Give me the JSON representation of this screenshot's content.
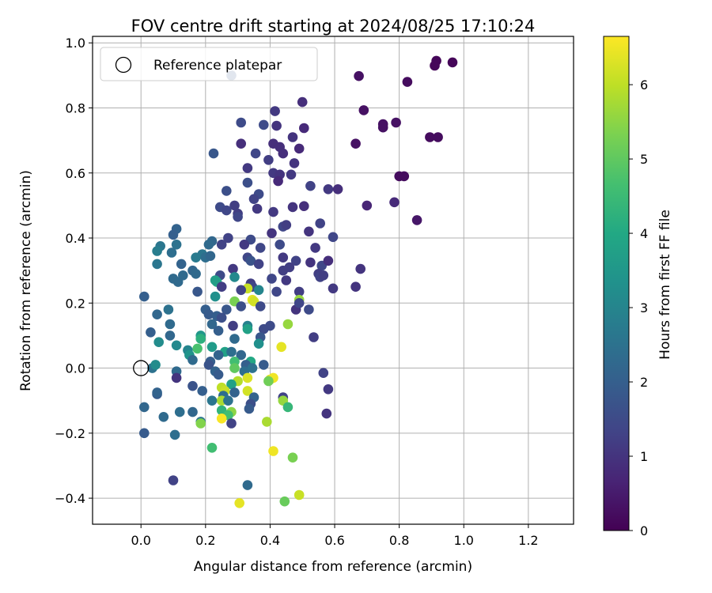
{
  "chart_data": {
    "type": "scatter",
    "title": "FOV centre drift starting at 2024/08/25 17:10:24",
    "xlabel": "Angular distance from reference (arcmin)",
    "ylabel": "Rotation from reference (arcmin)",
    "xlim": [
      -0.15,
      1.34
    ],
    "ylim": [
      -0.48,
      1.02
    ],
    "xticks": [
      0.0,
      0.2,
      0.4,
      0.6,
      0.8,
      1.0,
      1.2
    ],
    "xtick_labels": [
      "0.0",
      "0.2",
      "0.4",
      "0.6",
      "0.8",
      "1.0",
      "1.2"
    ],
    "yticks": [
      -0.4,
      -0.2,
      0.0,
      0.2,
      0.4,
      0.6,
      0.8,
      1.0
    ],
    "ytick_labels": [
      "−0.4",
      "−0.2",
      "0.0",
      "0.2",
      "0.4",
      "0.6",
      "0.8",
      "1.0"
    ],
    "grid": true,
    "legend": {
      "placement": "upper-left",
      "entries": [
        "Reference platepar"
      ]
    },
    "reference_point": {
      "x": 0.0,
      "y": 0.0
    },
    "colorbar": {
      "label": "Hours from first FF file",
      "range": [
        0,
        6.65
      ],
      "ticks": [
        0,
        1,
        2,
        3,
        4,
        5,
        6
      ],
      "tick_labels": [
        "0",
        "1",
        "2",
        "3",
        "4",
        "5",
        "6"
      ],
      "colormap": "viridis"
    },
    "points": [
      [
        0.915,
        0.945,
        0.1
      ],
      [
        0.965,
        0.94,
        0.1
      ],
      [
        0.91,
        0.93,
        0.1
      ],
      [
        0.28,
        0.9,
        1.8
      ],
      [
        0.675,
        0.898,
        0.3
      ],
      [
        0.825,
        0.88,
        0.2
      ],
      [
        0.5,
        0.818,
        0.9
      ],
      [
        0.69,
        0.793,
        0.3
      ],
      [
        0.415,
        0.79,
        1.1
      ],
      [
        0.31,
        0.755,
        1.5
      ],
      [
        0.38,
        0.748,
        1.5
      ],
      [
        0.42,
        0.745,
        1.0
      ],
      [
        0.505,
        0.738,
        0.8
      ],
      [
        0.75,
        0.75,
        0.3
      ],
      [
        0.79,
        0.755,
        0.3
      ],
      [
        0.75,
        0.74,
        0.3
      ],
      [
        0.895,
        0.71,
        0.2
      ],
      [
        0.92,
        0.71,
        0.2
      ],
      [
        0.47,
        0.71,
        1.0
      ],
      [
        0.31,
        0.69,
        0.9
      ],
      [
        0.41,
        0.69,
        0.9
      ],
      [
        0.43,
        0.68,
        0.9
      ],
      [
        0.665,
        0.69,
        0.3
      ],
      [
        0.49,
        0.675,
        0.8
      ],
      [
        0.44,
        0.66,
        0.9
      ],
      [
        0.355,
        0.66,
        1.4
      ],
      [
        0.225,
        0.66,
        1.8
      ],
      [
        0.395,
        0.64,
        1.2
      ],
      [
        0.475,
        0.63,
        1.0
      ],
      [
        0.33,
        0.615,
        1.1
      ],
      [
        0.41,
        0.6,
        1.1
      ],
      [
        0.43,
        0.595,
        1.0
      ],
      [
        0.465,
        0.595,
        1.1
      ],
      [
        0.8,
        0.59,
        0.2
      ],
      [
        0.815,
        0.59,
        0.2
      ],
      [
        0.425,
        0.575,
        0.8
      ],
      [
        0.33,
        0.57,
        1.6
      ],
      [
        0.525,
        0.56,
        1.3
      ],
      [
        0.58,
        0.55,
        1.1
      ],
      [
        0.61,
        0.55,
        0.9
      ],
      [
        0.265,
        0.545,
        1.6
      ],
      [
        0.365,
        0.535,
        1.5
      ],
      [
        0.35,
        0.52,
        1.3
      ],
      [
        0.29,
        0.5,
        1.2
      ],
      [
        0.47,
        0.495,
        1.0
      ],
      [
        0.505,
        0.498,
        0.9
      ],
      [
        0.245,
        0.495,
        1.5
      ],
      [
        0.7,
        0.5,
        0.7
      ],
      [
        0.785,
        0.51,
        0.8
      ],
      [
        0.265,
        0.485,
        1.4
      ],
      [
        0.36,
        0.49,
        1.1
      ],
      [
        0.3,
        0.475,
        1.2
      ],
      [
        0.41,
        0.48,
        1.1
      ],
      [
        0.3,
        0.465,
        1.4
      ],
      [
        0.855,
        0.455,
        0.4
      ],
      [
        0.555,
        0.445,
        1.3
      ],
      [
        0.44,
        0.435,
        1.4
      ],
      [
        0.45,
        0.44,
        1.2
      ],
      [
        0.11,
        0.428,
        2.1
      ],
      [
        0.405,
        0.415,
        1.0
      ],
      [
        0.52,
        0.42,
        1.0
      ],
      [
        0.1,
        0.41,
        2.0
      ],
      [
        0.595,
        0.403,
        1.4
      ],
      [
        0.22,
        0.39,
        2.2
      ],
      [
        0.34,
        0.395,
        1.5
      ],
      [
        0.27,
        0.4,
        1.3
      ],
      [
        0.11,
        0.38,
        2.5
      ],
      [
        0.25,
        0.38,
        1.3
      ],
      [
        0.21,
        0.38,
        2.3
      ],
      [
        0.32,
        0.38,
        1.1
      ],
      [
        0.37,
        0.37,
        1.4
      ],
      [
        0.43,
        0.38,
        1.5
      ],
      [
        0.54,
        0.37,
        1.1
      ],
      [
        0.06,
        0.375,
        2.6
      ],
      [
        0.05,
        0.36,
        2.8
      ],
      [
        0.095,
        0.355,
        2.4
      ],
      [
        0.19,
        0.35,
        2.6
      ],
      [
        0.17,
        0.34,
        2.7
      ],
      [
        0.2,
        0.34,
        2.4
      ],
      [
        0.215,
        0.345,
        2.2
      ],
      [
        0.33,
        0.34,
        1.4
      ],
      [
        0.34,
        0.33,
        1.7
      ],
      [
        0.44,
        0.34,
        1.1
      ],
      [
        0.125,
        0.32,
        2.1
      ],
      [
        0.48,
        0.33,
        1.3
      ],
      [
        0.525,
        0.325,
        1.0
      ],
      [
        0.56,
        0.315,
        1.4
      ],
      [
        0.05,
        0.32,
        2.6
      ],
      [
        0.365,
        0.32,
        1.3
      ],
      [
        0.68,
        0.305,
        1.0
      ],
      [
        0.285,
        0.305,
        1.1
      ],
      [
        0.46,
        0.31,
        1.2
      ],
      [
        0.44,
        0.3,
        1.2
      ],
      [
        0.16,
        0.3,
        2.2
      ],
      [
        0.17,
        0.29,
        2.3
      ],
      [
        0.245,
        0.285,
        1.5
      ],
      [
        0.13,
        0.285,
        2.3
      ],
      [
        0.55,
        0.29,
        1.2
      ],
      [
        0.555,
        0.28,
        1.3
      ],
      [
        0.565,
        0.285,
        1.2
      ],
      [
        0.58,
        0.33,
        0.9
      ],
      [
        0.1,
        0.275,
        2.3
      ],
      [
        0.29,
        0.28,
        3.1
      ],
      [
        0.235,
        0.265,
        4.0
      ],
      [
        0.23,
        0.27,
        3.7
      ],
      [
        0.115,
        0.265,
        2.3
      ],
      [
        0.34,
        0.26,
        1.2
      ],
      [
        0.45,
        0.27,
        1.1
      ],
      [
        0.405,
        0.275,
        1.4
      ],
      [
        0.345,
        0.25,
        1.4
      ],
      [
        0.595,
        0.245,
        1.1
      ],
      [
        0.665,
        0.25,
        1.0
      ],
      [
        0.25,
        0.25,
        1.2
      ],
      [
        0.365,
        0.24,
        3.0
      ],
      [
        0.33,
        0.245,
        6.1
      ],
      [
        0.31,
        0.24,
        1.3
      ],
      [
        0.42,
        0.235,
        1.4
      ],
      [
        0.49,
        0.235,
        1.2
      ],
      [
        0.175,
        0.235,
        1.8
      ],
      [
        0.01,
        0.22,
        2.0
      ],
      [
        0.23,
        0.22,
        3.3
      ],
      [
        0.345,
        0.21,
        6.4
      ],
      [
        0.35,
        0.205,
        6.2
      ],
      [
        0.29,
        0.205,
        5.3
      ],
      [
        0.49,
        0.21,
        5.6
      ],
      [
        0.085,
        0.18,
        2.5
      ],
      [
        0.2,
        0.18,
        2.0
      ],
      [
        0.52,
        0.18,
        1.5
      ],
      [
        0.48,
        0.18,
        1.0
      ],
      [
        0.37,
        0.19,
        1.5
      ],
      [
        0.31,
        0.19,
        1.6
      ],
      [
        0.49,
        0.2,
        1.4
      ],
      [
        0.265,
        0.18,
        1.8
      ],
      [
        0.21,
        0.165,
        1.9
      ],
      [
        0.05,
        0.165,
        2.2
      ],
      [
        0.235,
        0.16,
        2.0
      ],
      [
        0.25,
        0.155,
        1.6
      ],
      [
        0.22,
        0.135,
        2.2
      ],
      [
        0.09,
        0.135,
        2.3
      ],
      [
        0.285,
        0.13,
        1.2
      ],
      [
        0.33,
        0.13,
        2.9
      ],
      [
        0.4,
        0.13,
        1.5
      ],
      [
        0.455,
        0.135,
        5.6
      ],
      [
        0.38,
        0.12,
        1.5
      ],
      [
        0.33,
        0.12,
        3.8
      ],
      [
        0.24,
        0.115,
        2.0
      ],
      [
        0.03,
        0.11,
        2.0
      ],
      [
        0.37,
        0.095,
        1.8
      ],
      [
        0.535,
        0.095,
        1.2
      ],
      [
        0.09,
        0.1,
        2.2
      ],
      [
        0.185,
        0.1,
        3.5
      ],
      [
        0.185,
        0.09,
        4.2
      ],
      [
        0.29,
        0.09,
        2.3
      ],
      [
        0.055,
        0.08,
        3.2
      ],
      [
        0.365,
        0.075,
        3.3
      ],
      [
        0.435,
        0.065,
        6.4
      ],
      [
        0.11,
        0.07,
        3.1
      ],
      [
        0.22,
        0.065,
        3.6
      ],
      [
        0.145,
        0.055,
        3.0
      ],
      [
        0.175,
        0.06,
        4.7
      ],
      [
        0.15,
        0.04,
        3.4
      ],
      [
        0.26,
        0.05,
        3.8
      ],
      [
        0.24,
        0.04,
        2.1
      ],
      [
        0.28,
        0.05,
        2.4
      ],
      [
        0.31,
        0.04,
        2.2
      ],
      [
        0.16,
        0.025,
        2.3
      ],
      [
        0.215,
        0.02,
        2.0
      ],
      [
        0.29,
        0.02,
        4.6
      ],
      [
        0.34,
        0.02,
        4.0
      ],
      [
        0.325,
        0.01,
        2.0
      ],
      [
        0.38,
        0.01,
        1.9
      ],
      [
        0.29,
        0.0,
        5.0
      ],
      [
        0.32,
        -0.01,
        2.4
      ],
      [
        0.21,
        0.01,
        1.7
      ],
      [
        0.035,
        0.0,
        2.5
      ],
      [
        0.045,
        0.01,
        3.2
      ],
      [
        0.345,
        0.0,
        2.5
      ],
      [
        0.565,
        -0.015,
        1.3
      ],
      [
        0.11,
        -0.01,
        2.3
      ],
      [
        0.23,
        -0.01,
        2.1
      ],
      [
        0.24,
        -0.02,
        1.9
      ],
      [
        0.33,
        -0.03,
        6.3
      ],
      [
        0.4,
        -0.035,
        6.3
      ],
      [
        0.41,
        -0.03,
        6.5
      ],
      [
        0.11,
        -0.03,
        1.0
      ],
      [
        0.3,
        -0.04,
        5.9
      ],
      [
        0.395,
        -0.04,
        5.2
      ],
      [
        0.28,
        -0.05,
        3.8
      ],
      [
        0.16,
        -0.055,
        1.7
      ],
      [
        0.25,
        -0.06,
        6.0
      ],
      [
        0.58,
        -0.065,
        1.1
      ],
      [
        0.19,
        -0.07,
        2.0
      ],
      [
        0.33,
        -0.07,
        6.2
      ],
      [
        0.26,
        -0.07,
        6.1
      ],
      [
        0.29,
        -0.075,
        2.1
      ],
      [
        0.05,
        -0.08,
        1.9
      ],
      [
        0.05,
        -0.075,
        2.1
      ],
      [
        0.255,
        -0.085,
        2.4
      ],
      [
        0.35,
        -0.09,
        2.1
      ],
      [
        0.44,
        -0.09,
        1.3
      ],
      [
        0.44,
        -0.1,
        5.6
      ],
      [
        0.25,
        -0.1,
        5.8
      ],
      [
        0.27,
        -0.1,
        2.5
      ],
      [
        0.22,
        -0.1,
        2.6
      ],
      [
        0.34,
        -0.11,
        1.6
      ],
      [
        0.455,
        -0.12,
        4.4
      ],
      [
        0.01,
        -0.12,
        2.2
      ],
      [
        0.335,
        -0.125,
        1.9
      ],
      [
        0.25,
        -0.13,
        4.3
      ],
      [
        0.28,
        -0.135,
        5.5
      ],
      [
        0.12,
        -0.135,
        2.4
      ],
      [
        0.16,
        -0.135,
        2.2
      ],
      [
        0.575,
        -0.14,
        1.0
      ],
      [
        0.27,
        -0.145,
        4.6
      ],
      [
        0.07,
        -0.15,
        2.3
      ],
      [
        0.25,
        -0.155,
        6.6
      ],
      [
        0.185,
        -0.165,
        2.6
      ],
      [
        0.28,
        -0.17,
        1.3
      ],
      [
        0.185,
        -0.17,
        5.4
      ],
      [
        0.39,
        -0.165,
        5.8
      ],
      [
        0.01,
        -0.2,
        1.9
      ],
      [
        0.105,
        -0.205,
        2.4
      ],
      [
        0.22,
        -0.245,
        4.6
      ],
      [
        0.41,
        -0.255,
        6.5
      ],
      [
        0.47,
        -0.275,
        5.3
      ],
      [
        0.1,
        -0.345,
        1.3
      ],
      [
        0.33,
        -0.36,
        2.3
      ],
      [
        0.49,
        -0.39,
        6.1
      ],
      [
        0.445,
        -0.41,
        5.1
      ],
      [
        0.305,
        -0.415,
        6.4
      ]
    ]
  }
}
